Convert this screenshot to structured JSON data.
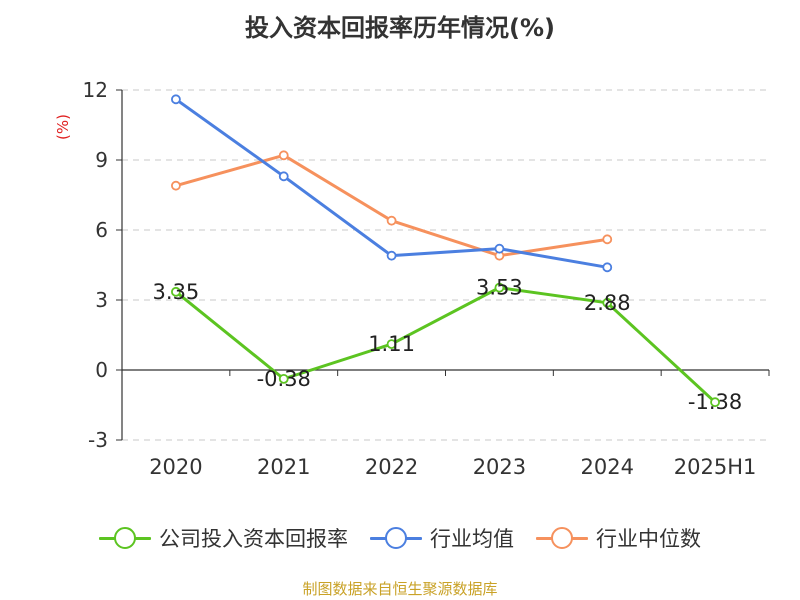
{
  "chart_data": {
    "type": "line",
    "title": "投入资本回报率历年情况(%)",
    "ylabel": "(%)",
    "xlabel": "",
    "categories": [
      "2020",
      "2021",
      "2022",
      "2023",
      "2024",
      "2025H1"
    ],
    "ylim": [
      -3,
      12
    ],
    "yticks": [
      12,
      9,
      6,
      3,
      0,
      -3
    ],
    "grid": true,
    "legend_position": "bottom",
    "series": [
      {
        "name": "公司投入资本回报率",
        "color": "#5cc421",
        "values": [
          3.35,
          -0.38,
          1.11,
          3.53,
          2.88,
          -1.38
        ],
        "labels": [
          "3.35",
          "-0.38",
          "1.11",
          "3.53",
          "2.88",
          "-1.38"
        ]
      },
      {
        "name": "行业均值",
        "color": "#4b7fe0",
        "values": [
          11.6,
          8.3,
          4.9,
          5.2,
          4.4,
          null
        ]
      },
      {
        "name": "行业中位数",
        "color": "#f6915d",
        "values": [
          7.9,
          9.2,
          6.4,
          4.9,
          5.6,
          null
        ]
      }
    ]
  },
  "source_note": "制图数据来自恒生聚源数据库"
}
